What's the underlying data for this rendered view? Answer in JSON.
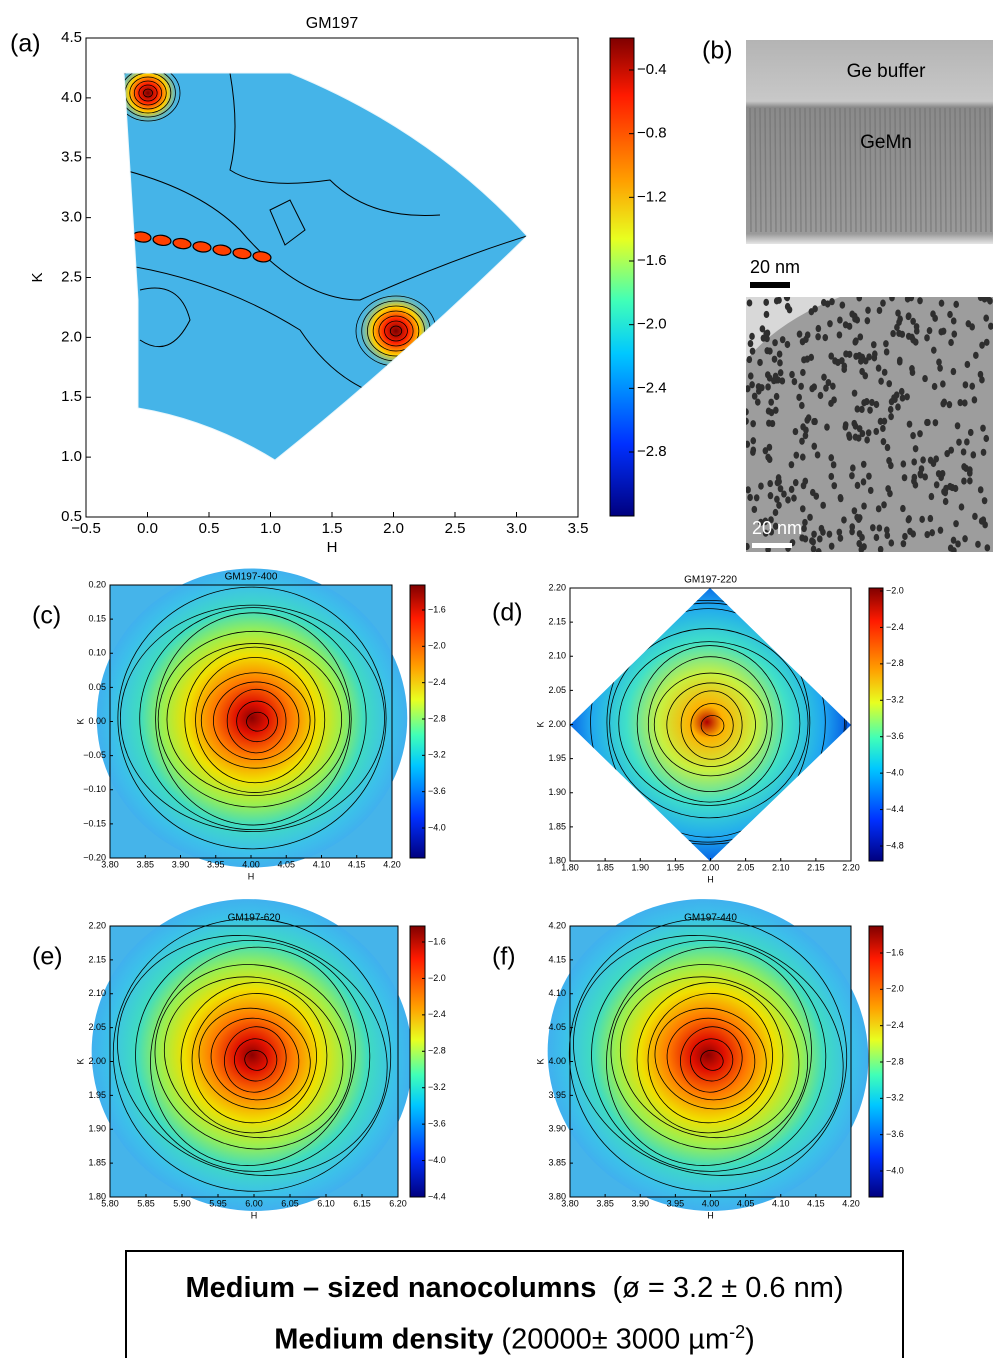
{
  "figure": {
    "panels": [
      {
        "label": "(a)",
        "title": "GM197",
        "x_label": "H",
        "y_label": "K",
        "x_ticks": [
          "−0.5",
          "0.0",
          "0.5",
          "1.0",
          "1.5",
          "2.0",
          "2.5",
          "3.0",
          "3.5"
        ],
        "y_ticks": [
          "4.5",
          "4.0",
          "3.5",
          "3.0",
          "2.5",
          "2.0",
          "1.5",
          "1.0",
          "0.5"
        ],
        "colorbar_ticks": [
          "−0.4",
          "−0.8",
          "−1.2",
          "−1.6",
          "−2.0",
          "−2.4",
          "−2.8"
        ]
      },
      {
        "label": "(c)",
        "title": "GM197-400",
        "x_label": "H",
        "y_label": "K",
        "x_ticks": [
          "3.80",
          "3.85",
          "3.90",
          "3.95",
          "4.00",
          "4.05",
          "4.10",
          "4.15",
          "4.20"
        ],
        "y_ticks": [
          "0.20",
          "0.15",
          "0.10",
          "0.05",
          "0.00",
          "−0.05",
          "−0.10",
          "−0.15",
          "−0.20"
        ],
        "colorbar_ticks": [
          "−1.6",
          "−2.0",
          "−2.4",
          "−2.8",
          "−3.2",
          "−3.6",
          "−4.0"
        ]
      },
      {
        "label": "(d)",
        "title": "GM197-220",
        "x_label": "H",
        "y_label": "K",
        "x_ticks": [
          "1.80",
          "1.85",
          "1.90",
          "1.95",
          "2.00",
          "2.05",
          "2.10",
          "2.15",
          "2.20"
        ],
        "y_ticks": [
          "2.20",
          "2.15",
          "2.10",
          "2.05",
          "2.00",
          "1.95",
          "1.90",
          "1.85",
          "1.80"
        ],
        "colorbar_ticks": [
          "−2.0",
          "−2.4",
          "−2.8",
          "−3.2",
          "−3.6",
          "−4.0",
          "−4.4",
          "−4.8"
        ]
      },
      {
        "label": "(e)",
        "title": "GM197-620",
        "x_label": "H",
        "y_label": "K",
        "x_ticks": [
          "5.80",
          "5.85",
          "5.90",
          "5.95",
          "6.00",
          "6.05",
          "6.10",
          "6.15",
          "6.20"
        ],
        "y_ticks": [
          "2.20",
          "2.15",
          "2.10",
          "2.05",
          "2.00",
          "1.95",
          "1.90",
          "1.85",
          "1.80"
        ],
        "colorbar_ticks": [
          "−1.6",
          "−2.0",
          "−2.4",
          "−2.8",
          "−3.2",
          "−3.6",
          "−4.0",
          "−4.4"
        ]
      },
      {
        "label": "(f)",
        "title": "GM197-440",
        "x_label": "H",
        "y_label": "K",
        "x_ticks": [
          "3.80",
          "3.85",
          "3.90",
          "3.95",
          "4.00",
          "4.05",
          "4.10",
          "4.15",
          "4.20"
        ],
        "y_ticks": [
          "4.20",
          "4.15",
          "4.10",
          "4.05",
          "4.00",
          "3.95",
          "3.90",
          "3.85",
          "3.80"
        ],
        "colorbar_ticks": [
          "−1.6",
          "−2.0",
          "−2.4",
          "−2.8",
          "−3.2",
          "−3.6",
          "−4.0"
        ]
      }
    ],
    "tem": {
      "label": "(b)",
      "top_layer": "Ge buffer",
      "bottom_layer": "GeMn",
      "scale_top": "20 nm",
      "scale_bottom": "20 nm"
    }
  },
  "caption": {
    "line1_bold": "Medium – sized nanocolumns",
    "line1_rest": "(ø = 3.2 ± 0.6 nm)",
    "line2_bold": "Medium density",
    "line2_rest": "(20000± 3000 µm",
    "line2_sup": "-2",
    "line2_end": ")"
  }
}
